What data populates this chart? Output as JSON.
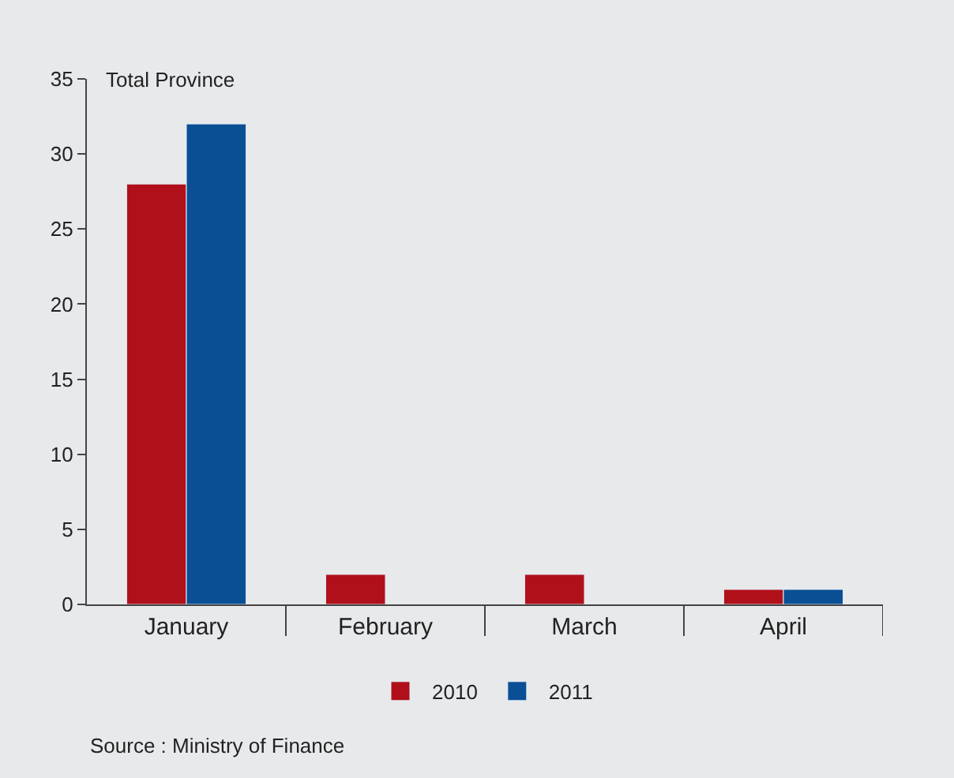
{
  "chart_data": {
    "type": "bar",
    "ylabel": "Total Province",
    "categories": [
      "January",
      "February",
      "March",
      "April"
    ],
    "series": [
      {
        "name": "2010",
        "color": "#b0101a",
        "values": [
          28,
          2,
          2,
          1
        ]
      },
      {
        "name": "2011",
        "color": "#0a4f94",
        "values": [
          32,
          null,
          null,
          1
        ]
      }
    ],
    "ylim": [
      0,
      35
    ],
    "yticks": [
      0,
      5,
      10,
      15,
      20,
      25,
      30,
      35
    ],
    "grid": false,
    "legend": "bottom",
    "annotations": [
      "Source : Ministry of Finance"
    ]
  }
}
